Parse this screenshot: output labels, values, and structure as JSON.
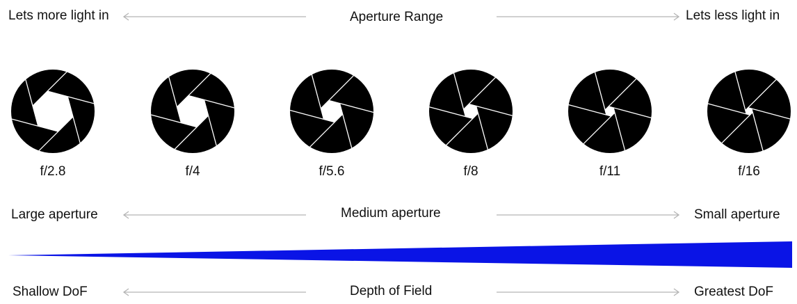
{
  "light_row": {
    "left": "Lets more light in",
    "center": "Aperture Range",
    "right": "Lets less light in"
  },
  "stops": [
    {
      "label": "f/2.8",
      "opening": 0.5
    },
    {
      "label": "f/4",
      "opening": 0.39
    },
    {
      "label": "f/5.6",
      "opening": 0.27
    },
    {
      "label": "f/8",
      "opening": 0.18
    },
    {
      "label": "f/11",
      "opening": 0.12
    },
    {
      "label": "f/16",
      "opening": 0.09
    }
  ],
  "aperture_row": {
    "left": "Large aperture",
    "center": "Medium aperture",
    "right": "Small aperture"
  },
  "dof_row": {
    "left": "Shallow DoF",
    "center": "Depth of Field",
    "right": "Greatest DoF"
  },
  "colors": {
    "wedge": "#0a14e6",
    "arrow": "#b4b4b4",
    "iris": "#000000",
    "blade_line": "#ffffff"
  }
}
